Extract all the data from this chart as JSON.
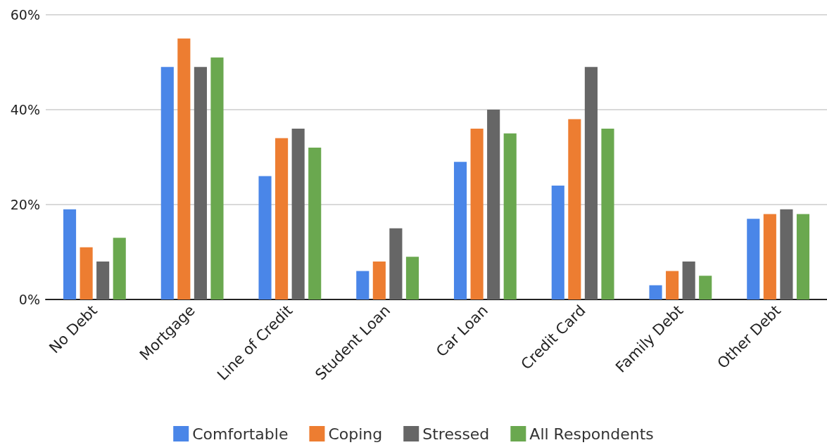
{
  "chart_data": {
    "type": "bar",
    "categories": [
      "No Debt",
      "Mortgage",
      "Line of Credit",
      "Student Loan",
      "Car Loan",
      "Credit Card",
      "Family Debt",
      "Other Debt"
    ],
    "series": [
      {
        "name": "Comfortable",
        "color": "#4a86e8",
        "values": [
          19,
          49,
          26,
          6,
          29,
          24,
          3,
          17
        ]
      },
      {
        "name": "Coping",
        "color": "#ed7d31",
        "values": [
          11,
          55,
          34,
          8,
          36,
          38,
          6,
          18
        ]
      },
      {
        "name": "Stressed",
        "color": "#666666",
        "values": [
          8,
          49,
          36,
          15,
          40,
          49,
          8,
          19
        ]
      },
      {
        "name": "All Respondents",
        "color": "#6aa84f",
        "values": [
          13,
          51,
          32,
          9,
          35,
          36,
          5,
          18
        ]
      }
    ],
    "ylim": [
      0,
      60
    ],
    "yticks": [
      {
        "value": 0,
        "label": "0%"
      },
      {
        "value": 20,
        "label": "20%"
      },
      {
        "value": 40,
        "label": "40%"
      },
      {
        "value": 60,
        "label": "60%"
      }
    ],
    "grid": "y",
    "legend": "bottom"
  }
}
